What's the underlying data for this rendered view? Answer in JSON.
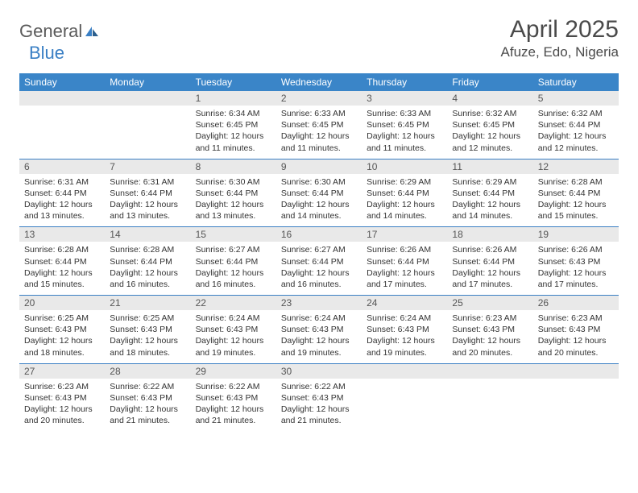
{
  "logo": {
    "part1": "General",
    "part2": "Blue"
  },
  "title": "April 2025",
  "location": "Afuze, Edo, Nigeria",
  "colors": {
    "header_bg": "#3a85c8",
    "header_text": "#ffffff",
    "daynum_bg": "#e9e9e9",
    "border": "#3a7fc4",
    "logo_gray": "#5a5a5a",
    "logo_blue": "#3a7fc4"
  },
  "day_names": [
    "Sunday",
    "Monday",
    "Tuesday",
    "Wednesday",
    "Thursday",
    "Friday",
    "Saturday"
  ],
  "weeks": [
    [
      {
        "n": "",
        "s": "",
        "t": "",
        "d": ""
      },
      {
        "n": "",
        "s": "",
        "t": "",
        "d": ""
      },
      {
        "n": "1",
        "s": "Sunrise: 6:34 AM",
        "t": "Sunset: 6:45 PM",
        "d": "Daylight: 12 hours and 11 minutes."
      },
      {
        "n": "2",
        "s": "Sunrise: 6:33 AM",
        "t": "Sunset: 6:45 PM",
        "d": "Daylight: 12 hours and 11 minutes."
      },
      {
        "n": "3",
        "s": "Sunrise: 6:33 AM",
        "t": "Sunset: 6:45 PM",
        "d": "Daylight: 12 hours and 11 minutes."
      },
      {
        "n": "4",
        "s": "Sunrise: 6:32 AM",
        "t": "Sunset: 6:45 PM",
        "d": "Daylight: 12 hours and 12 minutes."
      },
      {
        "n": "5",
        "s": "Sunrise: 6:32 AM",
        "t": "Sunset: 6:44 PM",
        "d": "Daylight: 12 hours and 12 minutes."
      }
    ],
    [
      {
        "n": "6",
        "s": "Sunrise: 6:31 AM",
        "t": "Sunset: 6:44 PM",
        "d": "Daylight: 12 hours and 13 minutes."
      },
      {
        "n": "7",
        "s": "Sunrise: 6:31 AM",
        "t": "Sunset: 6:44 PM",
        "d": "Daylight: 12 hours and 13 minutes."
      },
      {
        "n": "8",
        "s": "Sunrise: 6:30 AM",
        "t": "Sunset: 6:44 PM",
        "d": "Daylight: 12 hours and 13 minutes."
      },
      {
        "n": "9",
        "s": "Sunrise: 6:30 AM",
        "t": "Sunset: 6:44 PM",
        "d": "Daylight: 12 hours and 14 minutes."
      },
      {
        "n": "10",
        "s": "Sunrise: 6:29 AM",
        "t": "Sunset: 6:44 PM",
        "d": "Daylight: 12 hours and 14 minutes."
      },
      {
        "n": "11",
        "s": "Sunrise: 6:29 AM",
        "t": "Sunset: 6:44 PM",
        "d": "Daylight: 12 hours and 14 minutes."
      },
      {
        "n": "12",
        "s": "Sunrise: 6:28 AM",
        "t": "Sunset: 6:44 PM",
        "d": "Daylight: 12 hours and 15 minutes."
      }
    ],
    [
      {
        "n": "13",
        "s": "Sunrise: 6:28 AM",
        "t": "Sunset: 6:44 PM",
        "d": "Daylight: 12 hours and 15 minutes."
      },
      {
        "n": "14",
        "s": "Sunrise: 6:28 AM",
        "t": "Sunset: 6:44 PM",
        "d": "Daylight: 12 hours and 16 minutes."
      },
      {
        "n": "15",
        "s": "Sunrise: 6:27 AM",
        "t": "Sunset: 6:44 PM",
        "d": "Daylight: 12 hours and 16 minutes."
      },
      {
        "n": "16",
        "s": "Sunrise: 6:27 AM",
        "t": "Sunset: 6:44 PM",
        "d": "Daylight: 12 hours and 16 minutes."
      },
      {
        "n": "17",
        "s": "Sunrise: 6:26 AM",
        "t": "Sunset: 6:44 PM",
        "d": "Daylight: 12 hours and 17 minutes."
      },
      {
        "n": "18",
        "s": "Sunrise: 6:26 AM",
        "t": "Sunset: 6:44 PM",
        "d": "Daylight: 12 hours and 17 minutes."
      },
      {
        "n": "19",
        "s": "Sunrise: 6:26 AM",
        "t": "Sunset: 6:43 PM",
        "d": "Daylight: 12 hours and 17 minutes."
      }
    ],
    [
      {
        "n": "20",
        "s": "Sunrise: 6:25 AM",
        "t": "Sunset: 6:43 PM",
        "d": "Daylight: 12 hours and 18 minutes."
      },
      {
        "n": "21",
        "s": "Sunrise: 6:25 AM",
        "t": "Sunset: 6:43 PM",
        "d": "Daylight: 12 hours and 18 minutes."
      },
      {
        "n": "22",
        "s": "Sunrise: 6:24 AM",
        "t": "Sunset: 6:43 PM",
        "d": "Daylight: 12 hours and 19 minutes."
      },
      {
        "n": "23",
        "s": "Sunrise: 6:24 AM",
        "t": "Sunset: 6:43 PM",
        "d": "Daylight: 12 hours and 19 minutes."
      },
      {
        "n": "24",
        "s": "Sunrise: 6:24 AM",
        "t": "Sunset: 6:43 PM",
        "d": "Daylight: 12 hours and 19 minutes."
      },
      {
        "n": "25",
        "s": "Sunrise: 6:23 AM",
        "t": "Sunset: 6:43 PM",
        "d": "Daylight: 12 hours and 20 minutes."
      },
      {
        "n": "26",
        "s": "Sunrise: 6:23 AM",
        "t": "Sunset: 6:43 PM",
        "d": "Daylight: 12 hours and 20 minutes."
      }
    ],
    [
      {
        "n": "27",
        "s": "Sunrise: 6:23 AM",
        "t": "Sunset: 6:43 PM",
        "d": "Daylight: 12 hours and 20 minutes."
      },
      {
        "n": "28",
        "s": "Sunrise: 6:22 AM",
        "t": "Sunset: 6:43 PM",
        "d": "Daylight: 12 hours and 21 minutes."
      },
      {
        "n": "29",
        "s": "Sunrise: 6:22 AM",
        "t": "Sunset: 6:43 PM",
        "d": "Daylight: 12 hours and 21 minutes."
      },
      {
        "n": "30",
        "s": "Sunrise: 6:22 AM",
        "t": "Sunset: 6:43 PM",
        "d": "Daylight: 12 hours and 21 minutes."
      },
      {
        "n": "",
        "s": "",
        "t": "",
        "d": ""
      },
      {
        "n": "",
        "s": "",
        "t": "",
        "d": ""
      },
      {
        "n": "",
        "s": "",
        "t": "",
        "d": ""
      }
    ]
  ]
}
